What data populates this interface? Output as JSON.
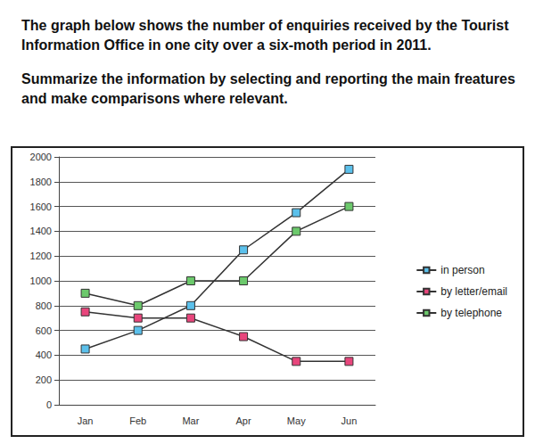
{
  "chart_data": {
    "type": "line",
    "title": "The graph below shows the number of enquiries received by the Tourist Information Office in one city over a six-moth period in 2011.",
    "subtitle": "Summarize the information by selecting and reporting the main freatures and make comparisons where relevant.",
    "categories": [
      "Jan",
      "Feb",
      "Mar",
      "Apr",
      "May",
      "Jun"
    ],
    "series": [
      {
        "name": "in person",
        "color": "#5bc0eb",
        "values": [
          450,
          600,
          800,
          1250,
          1550,
          1900
        ]
      },
      {
        "name": "by letter/email",
        "color": "#e8467c",
        "values": [
          750,
          700,
          700,
          550,
          350,
          350
        ]
      },
      {
        "name": "by telephone",
        "color": "#6cc96c",
        "values": [
          900,
          800,
          1000,
          1000,
          1400,
          1600
        ]
      }
    ],
    "ylim": [
      0,
      2000
    ],
    "yticks": [
      0,
      200,
      400,
      600,
      800,
      1000,
      1200,
      1400,
      1600,
      1800,
      2000
    ],
    "grid": true,
    "legend": "right",
    "marker": "square",
    "line_style": "solid"
  }
}
